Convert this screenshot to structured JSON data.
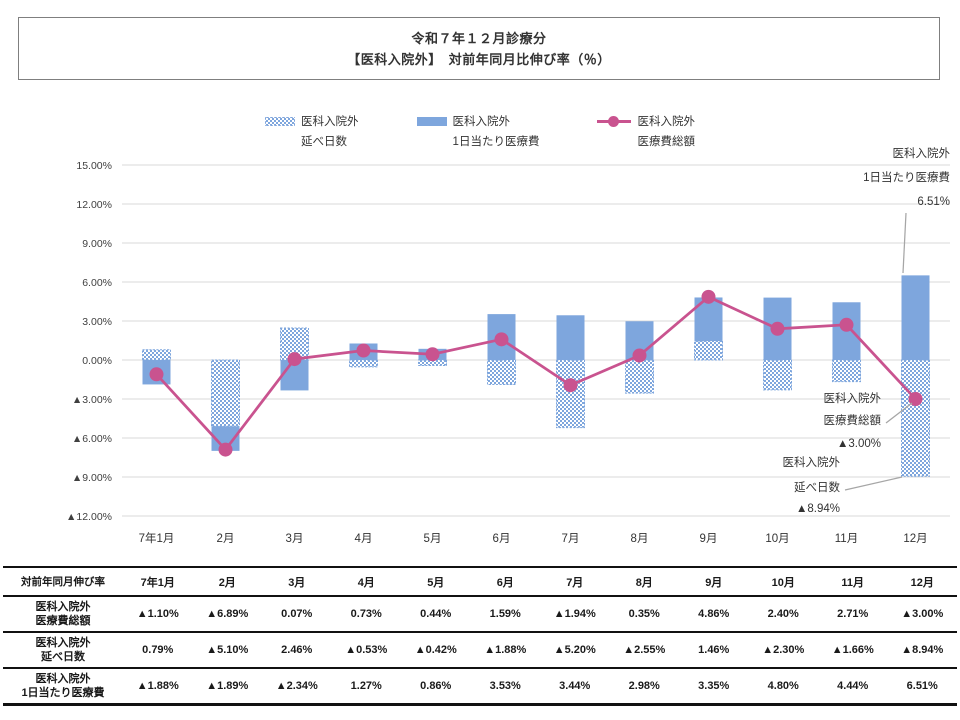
{
  "title": {
    "line1": "令和７年１２月診療分",
    "line2": "【医科入院外】　対前年同月比伸び率（％）"
  },
  "legend": [
    {
      "name": "医科入院外",
      "sub": "延べ日数",
      "swatch": "pattern-bar"
    },
    {
      "name": "医科入院外",
      "sub": "1日当たり医療費",
      "swatch": "solid-bar"
    },
    {
      "name": "医科入院外",
      "sub": "医療費総額",
      "swatch": "line-marker"
    }
  ],
  "colors": {
    "bar_solid": "#7ea6dd",
    "bar_pattern_dot": "#7ea6dd",
    "bar_pattern_bg": "#ffffff",
    "line": "#c9538f",
    "grid": "#d9d9d9",
    "axis_text": "#404040",
    "leader": "#a6a6a6",
    "annotation_text": "#333333"
  },
  "chart_data": {
    "type": "bar",
    "subtype": "stacked-bars-with-line",
    "categories": [
      "7年1月",
      "2月",
      "3月",
      "4月",
      "5月",
      "6月",
      "7月",
      "8月",
      "9月",
      "10月",
      "11月",
      "12月"
    ],
    "series": [
      {
        "name": "医科入院外 延べ日数",
        "type": "bar",
        "style": "pattern",
        "values": [
          0.79,
          -5.1,
          2.46,
          -0.53,
          -0.42,
          -1.88,
          -5.2,
          -2.55,
          1.46,
          -2.3,
          -1.66,
          -8.94
        ]
      },
      {
        "name": "医科入院外 1日当たり医療費",
        "type": "bar",
        "style": "solid",
        "values": [
          -1.88,
          -1.89,
          -2.34,
          1.27,
          0.86,
          3.53,
          3.44,
          2.98,
          3.35,
          4.8,
          4.44,
          6.51
        ]
      },
      {
        "name": "医科入院外 医療費総額",
        "type": "line",
        "values": [
          -1.1,
          -6.89,
          0.07,
          0.73,
          0.44,
          1.59,
          -1.94,
          0.35,
          4.86,
          2.4,
          2.71,
          -3.0
        ]
      }
    ],
    "stacked": true,
    "ylim": [
      -12,
      15
    ],
    "yticks": [
      15,
      12,
      9,
      6,
      3,
      0,
      -3,
      -6,
      -9,
      -12
    ],
    "ytick_labels": [
      "15.00%",
      "12.00%",
      "9.00%",
      "6.00%",
      "3.00%",
      "0.00%",
      "▲3.00%",
      "▲6.00%",
      "▲9.00%",
      "▲12.00%"
    ],
    "grid": true,
    "legend_position": "top",
    "annotations": [
      {
        "lines": [
          "医科入院外",
          "1日当たり医療費",
          "6.51%"
        ],
        "points_to": "12月 bar top"
      },
      {
        "lines": [
          "医科入院外",
          "医療費総額",
          "▲3.00%"
        ],
        "points_to": "12月 line point"
      },
      {
        "lines": [
          "医科入院外",
          "延べ日数",
          "▲8.94%"
        ],
        "points_to": "12月 bar bottom"
      }
    ]
  },
  "table": {
    "header_label": "対前年同月伸び率",
    "columns": [
      "7年1月",
      "2月",
      "3月",
      "4月",
      "5月",
      "6月",
      "7月",
      "8月",
      "9月",
      "10月",
      "11月",
      "12月"
    ],
    "rows": [
      {
        "label_line1": "医科入院外",
        "label_line2": "医療費総額",
        "values": [
          "▲1.10%",
          "▲6.89%",
          "0.07%",
          "0.73%",
          "0.44%",
          "1.59%",
          "▲1.94%",
          "0.35%",
          "4.86%",
          "2.40%",
          "2.71%",
          "▲3.00%"
        ]
      },
      {
        "label_line1": "医科入院外",
        "label_line2": "延べ日数",
        "values": [
          "0.79%",
          "▲5.10%",
          "2.46%",
          "▲0.53%",
          "▲0.42%",
          "▲1.88%",
          "▲5.20%",
          "▲2.55%",
          "1.46%",
          "▲2.30%",
          "▲1.66%",
          "▲8.94%"
        ]
      },
      {
        "label_line1": "医科入院外",
        "label_line2": "1日当たり医療費",
        "values": [
          "▲1.88%",
          "▲1.89%",
          "▲2.34%",
          "1.27%",
          "0.86%",
          "3.53%",
          "3.44%",
          "2.98%",
          "3.35%",
          "4.80%",
          "4.44%",
          "6.51%"
        ]
      }
    ]
  }
}
